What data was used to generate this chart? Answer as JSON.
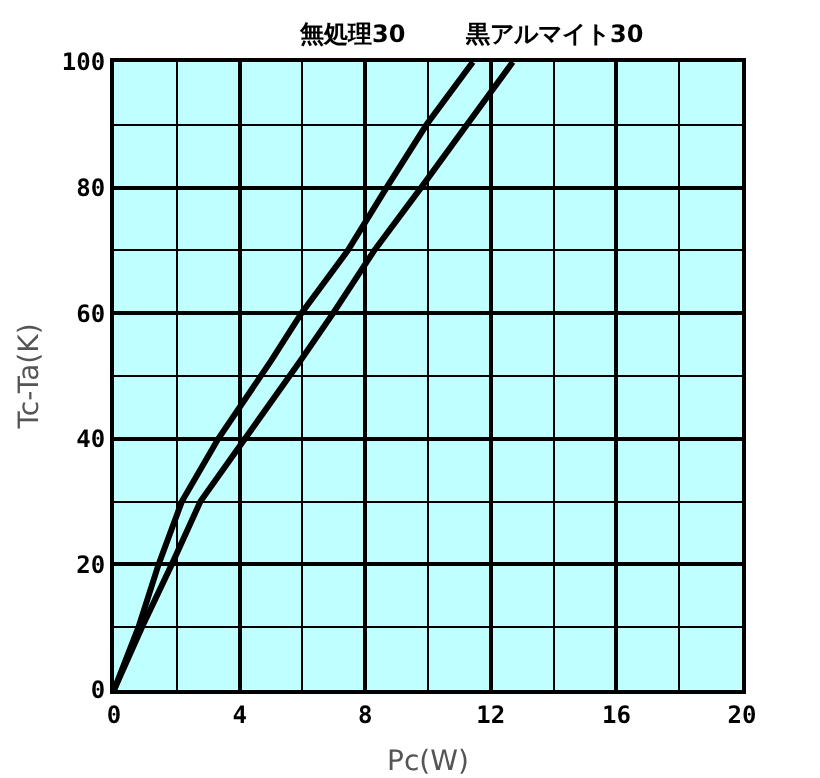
{
  "chart_data": {
    "type": "line",
    "xlabel": "Pc(W)",
    "ylabel": "Tc-Ta(K)",
    "annotations": [
      "無処理30",
      "黒アルマイト30"
    ],
    "series": [
      {
        "color": "#000000",
        "x": [
          0,
          0.78,
          1.42,
          2.16,
          3.32,
          5.0,
          5.97,
          7.45,
          8.68,
          9.95,
          11.43
        ],
        "values": [
          0,
          10,
          20,
          30,
          40,
          52.4,
          60,
          70,
          80,
          90,
          100
        ]
      },
      {
        "color": "#000000",
        "x": [
          0,
          0.89,
          1.84,
          2.75,
          4.17,
          5.93,
          6.98,
          8.29,
          9.78,
          11.24,
          12.7
        ],
        "values": [
          0,
          10,
          20,
          30,
          40,
          52.4,
          60,
          70,
          80,
          90,
          100
        ]
      }
    ],
    "xlim": [
      0,
      20
    ],
    "xticks": [
      0,
      4,
      8,
      12,
      16,
      20
    ],
    "ylim": [
      0,
      100
    ],
    "yticks": [
      0,
      20,
      40,
      60,
      80,
      100
    ],
    "grid": true,
    "marker": "none",
    "line_style": "solid"
  }
}
